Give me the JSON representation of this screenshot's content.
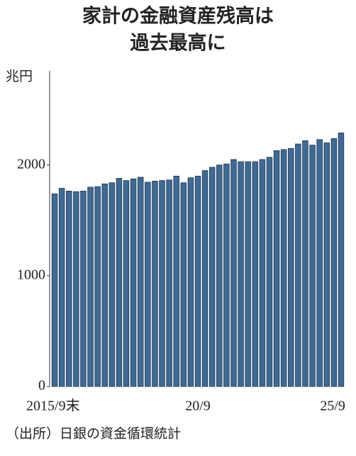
{
  "chart_data": {
    "type": "bar",
    "title": [
      "家計の金融資産残高は",
      "過去最高に"
    ],
    "y_label": "兆円",
    "source": "（出所）日銀の資金循環統計",
    "categories": [
      "2015/9末",
      null,
      null,
      null,
      null,
      null,
      null,
      null,
      null,
      null,
      null,
      null,
      null,
      null,
      null,
      null,
      null,
      null,
      null,
      null,
      "20/9",
      null,
      null,
      null,
      null,
      null,
      null,
      null,
      null,
      null,
      null,
      null,
      null,
      null,
      null,
      null,
      null,
      null,
      null,
      null,
      "25/9"
    ],
    "values": [
      1740,
      1790,
      1765,
      1760,
      1765,
      1800,
      1805,
      1830,
      1840,
      1880,
      1860,
      1875,
      1890,
      1845,
      1855,
      1860,
      1865,
      1900,
      1840,
      1885,
      1900,
      1950,
      1980,
      2000,
      2010,
      2050,
      2030,
      2030,
      2030,
      2050,
      2070,
      2130,
      2140,
      2150,
      2190,
      2220,
      2180,
      2230,
      2200,
      2240,
      2290
    ],
    "color": "#3f6a96",
    "ylim": [
      0,
      2850
    ],
    "yticks": [
      0,
      1000,
      2000
    ],
    "grid": false
  }
}
